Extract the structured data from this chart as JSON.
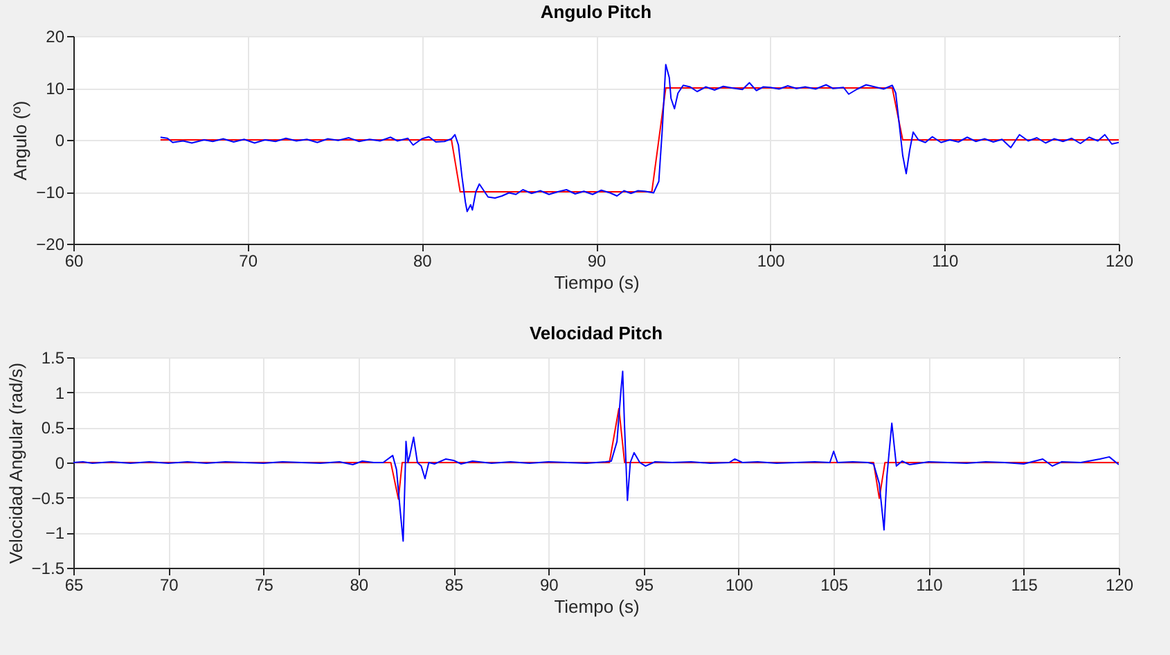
{
  "chart_data": [
    {
      "type": "line",
      "title": "Angulo Pitch",
      "xlabel": "Tiempo (s)",
      "ylabel": "Angulo (º)",
      "xlim": [
        60,
        120
      ],
      "xticks": [
        60,
        70,
        80,
        90,
        100,
        110,
        120
      ],
      "ylim": [
        -20,
        20
      ],
      "yticks": [
        -20,
        -10,
        0,
        10,
        20
      ],
      "grid": true,
      "series": [
        {
          "color": "#ff0000",
          "x": [
            65,
            81.7,
            82.2,
            93.2,
            94.0,
            107.0,
            107.6,
            120
          ],
          "values": [
            0,
            0,
            -10,
            -10,
            10,
            10,
            0,
            0
          ]
        },
        {
          "color": "#0000ff",
          "x": [
            65,
            65.4,
            65.7,
            66.3,
            66.8,
            67.5,
            68,
            68.6,
            69.2,
            69.8,
            70.4,
            71,
            71.6,
            72.2,
            72.8,
            73.4,
            74,
            74.6,
            75.2,
            75.8,
            76.4,
            77,
            77.6,
            78.2,
            78.6,
            79.2,
            79.5,
            80,
            80.4,
            80.8,
            81.3,
            81.7,
            81.9,
            82.1,
            82.3,
            82.5,
            82.6,
            82.8,
            82.9,
            83.1,
            83.3,
            83.5,
            83.8,
            84.2,
            84.6,
            85,
            85.4,
            85.8,
            86.3,
            86.8,
            87.3,
            87.8,
            88.3,
            88.8,
            89.3,
            89.8,
            90.3,
            90.8,
            91.2,
            91.6,
            92,
            92.4,
            92.8,
            93.3,
            93.6,
            93.8,
            94,
            94.2,
            94.3,
            94.5,
            94.7,
            95,
            95.4,
            95.8,
            96.3,
            96.8,
            97.3,
            97.8,
            98.4,
            98.8,
            99.2,
            99.6,
            100,
            100.5,
            101,
            101.5,
            102,
            102.6,
            103.2,
            103.6,
            104.2,
            104.5,
            105,
            105.5,
            106,
            106.5,
            107,
            107.2,
            107.4,
            107.6,
            107.8,
            108,
            108.2,
            108.5,
            108.9,
            109.3,
            109.8,
            110.3,
            110.8,
            111.3,
            111.8,
            112.3,
            112.8,
            113.3,
            113.8,
            114.3,
            114.8,
            115.3,
            115.8,
            116.3,
            116.8,
            117.3,
            117.8,
            118.3,
            118.8,
            119.2,
            119.6,
            120
          ],
          "values": [
            0.5,
            0.3,
            -0.5,
            -0.2,
            -0.6,
            0,
            -0.3,
            0.2,
            -0.4,
            0.1,
            -0.6,
            0,
            -0.3,
            0.3,
            -0.2,
            0.1,
            -0.5,
            0.2,
            -0.1,
            0.4,
            -0.3,
            0.1,
            -0.2,
            0.5,
            -0.2,
            0.3,
            -1,
            0.2,
            0.6,
            -0.4,
            -0.3,
            0.2,
            1,
            -1,
            -7,
            -12,
            -13.8,
            -12.5,
            -13.5,
            -10,
            -8.5,
            -9.5,
            -11,
            -11.2,
            -10.8,
            -10.2,
            -10.5,
            -9.6,
            -10.3,
            -9.8,
            -10.5,
            -10,
            -9.6,
            -10.4,
            -9.9,
            -10.5,
            -9.7,
            -10.2,
            -10.8,
            -9.8,
            -10.3,
            -9.8,
            -9.9,
            -10.2,
            -8,
            2,
            14.5,
            12,
            8,
            6,
            9,
            10.5,
            10.2,
            9.3,
            10.2,
            9.6,
            10.3,
            10,
            9.7,
            11,
            9.5,
            10.2,
            10.1,
            9.8,
            10.4,
            9.9,
            10.2,
            9.8,
            10.6,
            9.9,
            10.1,
            8.8,
            9.8,
            10.6,
            10.2,
            9.8,
            10.5,
            9,
            3,
            -3,
            -6.5,
            -2,
            1.5,
            0,
            -0.5,
            0.6,
            -0.5,
            0,
            -0.4,
            0.5,
            -0.3,
            0.2,
            -0.4,
            0.1,
            -1.5,
            1,
            -0.2,
            0.4,
            -0.6,
            0.2,
            -0.3,
            0.3,
            -0.7,
            0.5,
            -0.2,
            1,
            -0.8,
            -0.5
          ]
        }
      ]
    },
    {
      "type": "line",
      "title": "Velocidad Pitch",
      "xlabel": "Tiempo (s)",
      "ylabel": "Velocidad Angular (rad/s)",
      "xlim": [
        65,
        120
      ],
      "xticks": [
        65,
        70,
        75,
        80,
        85,
        90,
        95,
        100,
        105,
        110,
        115,
        120
      ],
      "ylim": [
        -1.5,
        1.5
      ],
      "yticks": [
        -1.5,
        -1,
        -0.5,
        0,
        0.5,
        1,
        1.5
      ],
      "grid": true,
      "series": [
        {
          "color": "#ff0000",
          "x": [
            65,
            81.7,
            82.1,
            82.3,
            93.2,
            93.7,
            94.0,
            107.1,
            107.4,
            107.7,
            120
          ],
          "values": [
            0,
            0,
            -0.52,
            0,
            0,
            0.77,
            0,
            0,
            -0.51,
            0,
            0
          ]
        },
        {
          "color": "#0000ff",
          "x": [
            65,
            65.5,
            66,
            67,
            68,
            69,
            70,
            71,
            72,
            73,
            74,
            75,
            76,
            77,
            78,
            79,
            79.7,
            80.2,
            80.8,
            81.3,
            81.8,
            82.0,
            82.2,
            82.35,
            82.45,
            82.5,
            82.6,
            82.7,
            82.9,
            83.1,
            83.3,
            83.5,
            83.7,
            84,
            84.6,
            85,
            85.4,
            86,
            87,
            88,
            89,
            90,
            91,
            92,
            93,
            93.3,
            93.6,
            93.8,
            93.9,
            94.0,
            94.15,
            94.3,
            94.5,
            94.8,
            95.1,
            95.6,
            96.5,
            97.5,
            98.5,
            99.5,
            99.8,
            100.2,
            101,
            102,
            103,
            104,
            104.8,
            105,
            105.2,
            106,
            106.8,
            107.1,
            107.4,
            107.65,
            107.8,
            108.06,
            108.3,
            108.6,
            109,
            110,
            111,
            112,
            113,
            114,
            115,
            116,
            116.5,
            117,
            118,
            119,
            119.5,
            120
          ],
          "values": [
            0,
            0.01,
            -0.01,
            0.01,
            -0.01,
            0.01,
            -0.01,
            0.01,
            -0.01,
            0.01,
            0,
            -0.01,
            0.01,
            0,
            -0.01,
            0.01,
            -0.03,
            0.02,
            0,
            0,
            0.1,
            -0.1,
            -0.7,
            -1.12,
            -0.2,
            0.3,
            0,
            0.1,
            0.36,
            0,
            -0.05,
            -0.23,
            0,
            -0.02,
            0.05,
            0.03,
            -0.02,
            0.02,
            -0.01,
            0.01,
            -0.01,
            0.01,
            0,
            -0.01,
            0.01,
            0.02,
            0.3,
            1.0,
            1.3,
            0.5,
            -0.54,
            0,
            0.14,
            0,
            -0.05,
            0.01,
            0,
            0.01,
            -0.01,
            0,
            0.05,
            0,
            0.01,
            -0.01,
            0,
            0.01,
            0,
            0.16,
            0,
            0.01,
            0,
            -0.02,
            -0.3,
            -0.96,
            -0.2,
            0.56,
            -0.05,
            0.02,
            -0.03,
            0.01,
            0,
            -0.01,
            0.01,
            0,
            -0.02,
            0.05,
            -0.05,
            0.01,
            0,
            0.05,
            0.08,
            -0.03
          ]
        }
      ]
    }
  ]
}
